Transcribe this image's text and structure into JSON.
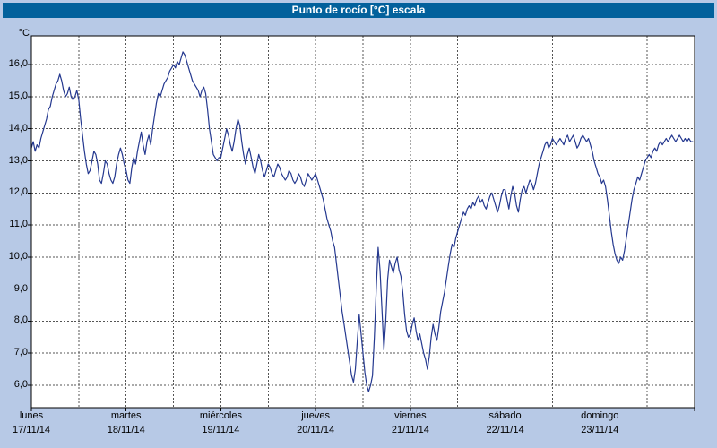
{
  "window": {
    "title": "Punto de rocío [°C] escala"
  },
  "chart_data": {
    "type": "line",
    "title": "Punto de rocío [°C] escala",
    "xlabel": "",
    "ylabel": "°C",
    "legend": "none",
    "grid": {
      "h_step": 1,
      "v_step_days": 0.5,
      "style": "dashed",
      "color": "#555555"
    },
    "xlim_days": [
      0,
      7
    ],
    "ylim": [
      5.3,
      16.9
    ],
    "y_ticks": [
      {
        "value": 16,
        "label": "16,0"
      },
      {
        "value": 15,
        "label": "15,0"
      },
      {
        "value": 14,
        "label": "14,0"
      },
      {
        "value": 13,
        "label": "13,0"
      },
      {
        "value": 12,
        "label": "12,0"
      },
      {
        "value": 11,
        "label": "11,0"
      },
      {
        "value": 10,
        "label": "10,0"
      },
      {
        "value": 9,
        "label": "9,0"
      },
      {
        "value": 8,
        "label": "8,0"
      },
      {
        "value": 7,
        "label": "7,0"
      },
      {
        "value": 6,
        "label": "6,0"
      }
    ],
    "x_ticks": [
      {
        "day": "lunes",
        "date": "17/11/14"
      },
      {
        "day": "martes",
        "date": "18/11/14"
      },
      {
        "day": "miércoles",
        "date": "19/11/14"
      },
      {
        "day": "jueves",
        "date": "20/11/14"
      },
      {
        "day": "viernes",
        "date": "21/11/14"
      },
      {
        "day": "sábado",
        "date": "22/11/14"
      },
      {
        "day": "domingo",
        "date": "23/11/14"
      }
    ],
    "series": [
      {
        "name": "Punto de rocío [°C]",
        "color": "#24388f",
        "x_start": 0,
        "x_step": 0.02,
        "values": [
          13.4,
          13.6,
          13.3,
          13.5,
          13.4,
          13.7,
          13.9,
          14.1,
          14.3,
          14.6,
          14.7,
          15.0,
          15.2,
          15.4,
          15.5,
          15.7,
          15.5,
          15.2,
          15.0,
          15.1,
          15.3,
          15.0,
          14.9,
          15.0,
          15.2,
          14.9,
          14.3,
          13.8,
          13.3,
          12.9,
          12.6,
          12.7,
          13.0,
          13.3,
          13.2,
          12.9,
          12.4,
          12.3,
          12.6,
          13.0,
          12.9,
          12.6,
          12.4,
          12.3,
          12.5,
          12.9,
          13.2,
          13.4,
          13.2,
          12.9,
          12.7,
          12.4,
          12.3,
          12.8,
          13.1,
          12.9,
          13.3,
          13.6,
          13.9,
          13.5,
          13.2,
          13.6,
          13.8,
          13.5,
          14.0,
          14.4,
          14.8,
          15.1,
          15.0,
          15.2,
          15.4,
          15.5,
          15.6,
          15.8,
          15.9,
          16.0,
          15.9,
          16.1,
          16.0,
          16.2,
          16.4,
          16.3,
          16.1,
          15.9,
          15.7,
          15.5,
          15.4,
          15.3,
          15.2,
          15.0,
          15.2,
          15.3,
          15.1,
          14.6,
          14.0,
          13.6,
          13.2,
          13.1,
          13.0,
          13.1,
          13.1,
          13.4,
          13.7,
          14.0,
          13.8,
          13.5,
          13.3,
          13.6,
          14.0,
          14.3,
          14.1,
          13.6,
          13.2,
          12.9,
          13.2,
          13.4,
          13.1,
          12.8,
          12.6,
          12.9,
          13.2,
          13.0,
          12.7,
          12.5,
          12.7,
          12.9,
          12.8,
          12.6,
          12.5,
          12.7,
          12.9,
          12.8,
          12.6,
          12.5,
          12.4,
          12.5,
          12.7,
          12.6,
          12.4,
          12.3,
          12.4,
          12.6,
          12.5,
          12.3,
          12.2,
          12.4,
          12.6,
          12.5,
          12.4,
          12.5,
          12.6,
          12.4,
          12.2,
          12.0,
          11.8,
          11.5,
          11.2,
          11.0,
          10.8,
          10.5,
          10.3,
          9.8,
          9.3,
          8.8,
          8.3,
          7.9,
          7.5,
          7.1,
          6.7,
          6.3,
          6.1,
          6.5,
          7.4,
          8.2,
          7.6,
          7.0,
          6.4,
          6.0,
          5.8,
          6.0,
          6.3,
          7.5,
          9.0,
          10.3,
          9.6,
          8.4,
          7.1,
          8.0,
          9.3,
          9.9,
          9.7,
          9.5,
          9.8,
          10.0,
          9.6,
          9.4,
          8.9,
          8.2,
          7.7,
          7.5,
          7.6,
          7.9,
          8.1,
          7.7,
          7.4,
          7.6,
          7.3,
          7.0,
          6.8,
          6.5,
          6.9,
          7.5,
          7.9,
          7.6,
          7.4,
          7.8,
          8.3,
          8.6,
          8.9,
          9.3,
          9.7,
          10.1,
          10.4,
          10.3,
          10.6,
          10.8,
          11.0,
          11.2,
          11.4,
          11.3,
          11.5,
          11.6,
          11.5,
          11.7,
          11.6,
          11.8,
          11.9,
          11.7,
          11.8,
          11.6,
          11.5,
          11.7,
          11.9,
          12.0,
          11.8,
          11.6,
          11.4,
          11.6,
          11.9,
          12.1,
          12.1,
          11.8,
          11.5,
          11.9,
          12.2,
          12.0,
          11.6,
          11.4,
          11.8,
          12.1,
          12.2,
          12.0,
          12.2,
          12.4,
          12.3,
          12.1,
          12.3,
          12.6,
          12.9,
          13.1,
          13.3,
          13.5,
          13.6,
          13.4,
          13.5,
          13.7,
          13.6,
          13.5,
          13.6,
          13.7,
          13.6,
          13.5,
          13.7,
          13.8,
          13.6,
          13.7,
          13.8,
          13.6,
          13.4,
          13.5,
          13.7,
          13.8,
          13.7,
          13.6,
          13.7,
          13.5,
          13.3,
          13.0,
          12.8,
          12.6,
          12.5,
          12.3,
          12.4,
          12.2,
          11.8,
          11.3,
          10.8,
          10.4,
          10.1,
          9.9,
          9.8,
          10.0,
          9.9,
          10.2,
          10.6,
          11.0,
          11.4,
          11.8,
          12.1,
          12.3,
          12.5,
          12.4,
          12.6,
          12.8,
          13.0,
          13.1,
          13.2,
          13.1,
          13.3,
          13.4,
          13.3,
          13.5,
          13.6,
          13.5,
          13.6,
          13.7,
          13.6,
          13.7,
          13.8,
          13.7,
          13.6,
          13.7,
          13.8,
          13.7,
          13.6,
          13.7,
          13.6,
          13.7,
          13.6,
          13.6
        ]
      }
    ]
  }
}
